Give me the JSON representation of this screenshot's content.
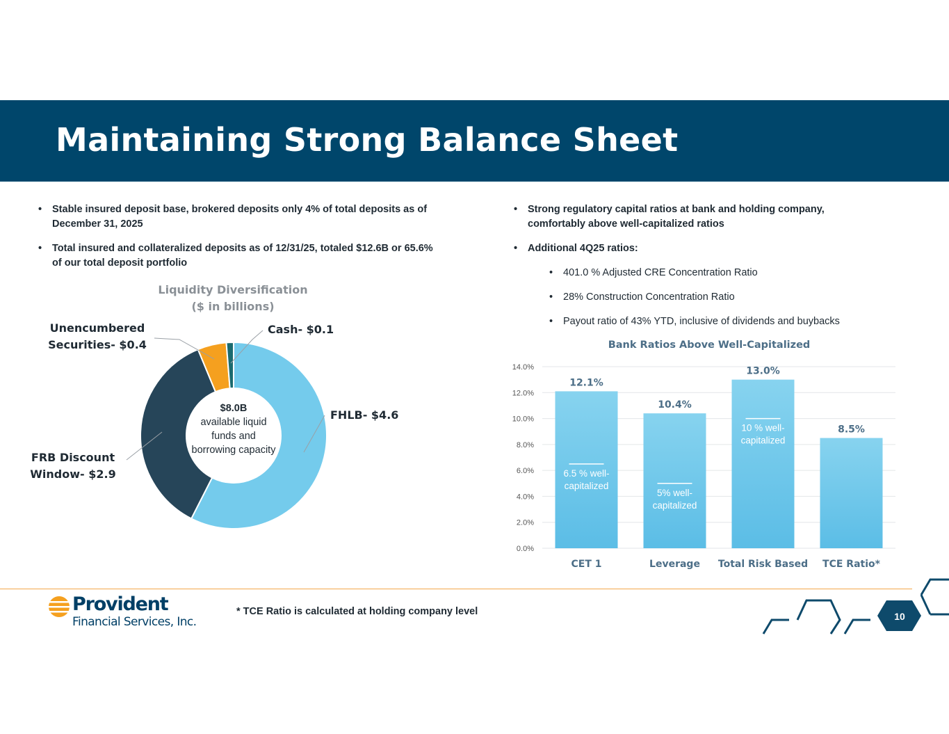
{
  "header": {
    "title": "Maintaining Strong Balance Sheet"
  },
  "left_bullets": [
    "Stable insured deposit base, brokered deposits only 4% of total deposits as of December 31, 2025",
    "Total insured and collateralized deposits as of 12/31/25, totaled $12.6B or 65.6% of our total deposit portfolio"
  ],
  "right_bullets": [
    "Strong regulatory capital ratios at bank and holding company, comfortably above well-capitalized ratios",
    "Additional 4Q25 ratios:"
  ],
  "right_sub_bullets": [
    "401.0 % Adjusted CRE Concentration Ratio",
    "28% Construction Concentration Ratio",
    "Payout ratio of 43% YTD, inclusive of dividends and buybacks"
  ],
  "donut_center": {
    "amount": "$8.0B",
    "line1": "available liquid",
    "line2": "funds and",
    "line3": "borrowing capacity"
  },
  "footnote": "* TCE Ratio is calculated at holding company level",
  "logo": {
    "name": "Provident",
    "sub": "Financial Services, Inc."
  },
  "page_number": "10",
  "colors": {
    "banner": "#00466b",
    "fhlb": "#74cbec",
    "frb": "#264559",
    "securities": "#f5a01f",
    "cash": "#1b6b6f",
    "bar": "#6cc5ea",
    "label": "#4c6e87"
  },
  "chart_data": [
    {
      "type": "pie",
      "title_line1": "Liquidity Diversification",
      "title_line2": "($ in billions)",
      "slices": [
        {
          "label_line1": "FHLB-  $4.6",
          "label_line2": "",
          "value": 4.6
        },
        {
          "label_line1": "FRB Discount",
          "label_line2": "Window- $2.9",
          "value": 2.9
        },
        {
          "label_line1": "Unencumbered",
          "label_line2": "Securities- $0.4",
          "value": 0.4
        },
        {
          "label_line1": "Cash- $0.1",
          "label_line2": "",
          "value": 0.1
        }
      ]
    },
    {
      "type": "bar",
      "title": "Bank Ratios Above Well-Capitalized",
      "categories": [
        "CET 1",
        "Leverage",
        "Total Risk Based",
        "TCE Ratio*"
      ],
      "values": [
        12.1,
        10.4,
        13.0,
        8.5
      ],
      "data_labels": [
        "12.1%",
        "10.4%",
        "13.0%",
        "8.5%"
      ],
      "thresholds": [
        {
          "value": 6.5,
          "label_line1": "6.5 % well-",
          "label_line2": "capitalized"
        },
        {
          "value": 5.0,
          "label_line1": "5% well-",
          "label_line2": "capitalized"
        },
        {
          "value": 10.0,
          "label_line1": "10 % well-",
          "label_line2": "capitalized"
        },
        null
      ],
      "yticks": [
        "0.0%",
        "2.0%",
        "4.0%",
        "6.0%",
        "8.0%",
        "10.0%",
        "12.0%",
        "14.0%"
      ],
      "ylim": [
        0,
        14
      ],
      "grid": true
    }
  ]
}
